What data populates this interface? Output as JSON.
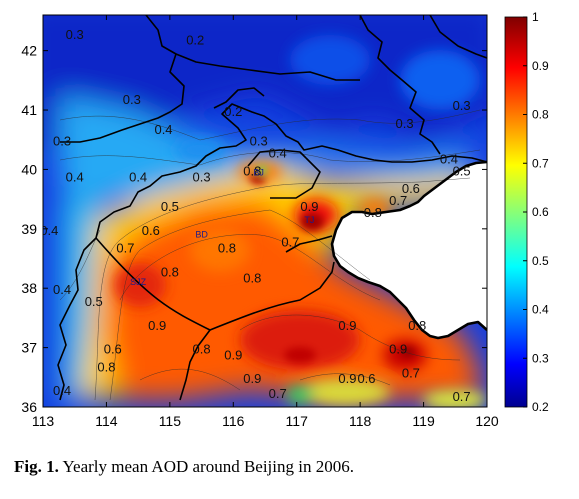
{
  "caption": {
    "number": "Fig. 1.",
    "text": "Yearly mean AOD around Beijing in 2006."
  },
  "map": {
    "x_ticks": [
      "113",
      "114",
      "115",
      "116",
      "117",
      "118",
      "119",
      "120"
    ],
    "y_ticks": [
      "36",
      "37",
      "38",
      "39",
      "40",
      "41",
      "42"
    ],
    "xlim": [
      113,
      120
    ],
    "ylim": [
      36,
      42.6
    ],
    "colorbar": {
      "ticks": [
        "0.2",
        "0.3",
        "0.4",
        "0.5",
        "0.6",
        "0.7",
        "0.8",
        "0.9",
        "1"
      ],
      "range": [
        0.2,
        1.0
      ],
      "colormap": "jet"
    },
    "cities": [
      {
        "label": "BJ",
        "lon": 116.4,
        "lat": 39.9
      },
      {
        "label": "TJ",
        "lon": 117.2,
        "lat": 39.1
      },
      {
        "label": "BD",
        "lon": 115.5,
        "lat": 38.85
      },
      {
        "label": "SJZ",
        "lon": 114.5,
        "lat": 38.05
      }
    ],
    "contour_labels": [
      {
        "text": "0.3",
        "lon": 113.5,
        "lat": 42.2
      },
      {
        "text": "0.2",
        "lon": 115.4,
        "lat": 42.1
      },
      {
        "text": "0.3",
        "lon": 114.4,
        "lat": 41.1
      },
      {
        "text": "0.2",
        "lon": 116.0,
        "lat": 40.9
      },
      {
        "text": "0.3",
        "lon": 118.7,
        "lat": 40.7
      },
      {
        "text": "0.3",
        "lon": 119.6,
        "lat": 41.0
      },
      {
        "text": "0.4",
        "lon": 114.9,
        "lat": 40.6
      },
      {
        "text": "0.3",
        "lon": 113.3,
        "lat": 40.4
      },
      {
        "text": "0.3",
        "lon": 116.4,
        "lat": 40.4
      },
      {
        "text": "0.4",
        "lon": 116.7,
        "lat": 40.2
      },
      {
        "text": "0.4",
        "lon": 113.5,
        "lat": 39.8
      },
      {
        "text": "0.3",
        "lon": 115.5,
        "lat": 39.8
      },
      {
        "text": "0.4",
        "lon": 114.5,
        "lat": 39.8
      },
      {
        "text": "0.8",
        "lon": 116.3,
        "lat": 39.9
      },
      {
        "text": "0.4",
        "lon": 119.4,
        "lat": 40.1
      },
      {
        "text": "0.6",
        "lon": 118.8,
        "lat": 39.6
      },
      {
        "text": "0.5",
        "lon": 119.6,
        "lat": 39.9
      },
      {
        "text": "0.7",
        "lon": 118.6,
        "lat": 39.4
      },
      {
        "text": "0.8",
        "lon": 118.2,
        "lat": 39.2
      },
      {
        "text": "0.9",
        "lon": 117.2,
        "lat": 39.3
      },
      {
        "text": "0.5",
        "lon": 115.0,
        "lat": 39.3
      },
      {
        "text": "0.6",
        "lon": 114.7,
        "lat": 38.9
      },
      {
        "text": "0.4",
        "lon": 113.1,
        "lat": 38.9
      },
      {
        "text": "0.7",
        "lon": 116.9,
        "lat": 38.7
      },
      {
        "text": "0.7",
        "lon": 114.3,
        "lat": 38.6
      },
      {
        "text": "0.8",
        "lon": 115.9,
        "lat": 38.6
      },
      {
        "text": "0.8",
        "lon": 115.0,
        "lat": 38.2
      },
      {
        "text": "0.8",
        "lon": 116.3,
        "lat": 38.1
      },
      {
        "text": "0.4",
        "lon": 113.3,
        "lat": 37.9
      },
      {
        "text": "0.5",
        "lon": 113.8,
        "lat": 37.7
      },
      {
        "text": "0.9",
        "lon": 114.8,
        "lat": 37.3
      },
      {
        "text": "0.6",
        "lon": 114.1,
        "lat": 36.9
      },
      {
        "text": "0.8",
        "lon": 115.5,
        "lat": 36.9
      },
      {
        "text": "0.9",
        "lon": 116.0,
        "lat": 36.8
      },
      {
        "text": "0.8",
        "lon": 114.0,
        "lat": 36.6
      },
      {
        "text": "0.9",
        "lon": 117.8,
        "lat": 37.3
      },
      {
        "text": "0.8",
        "lon": 118.9,
        "lat": 37.3
      },
      {
        "text": "0.9",
        "lon": 118.6,
        "lat": 36.9
      },
      {
        "text": "0.9",
        "lon": 116.3,
        "lat": 36.4
      },
      {
        "text": "0.9",
        "lon": 117.8,
        "lat": 36.4
      },
      {
        "text": "0.6",
        "lon": 118.1,
        "lat": 36.4
      },
      {
        "text": "0.7",
        "lon": 118.8,
        "lat": 36.5
      },
      {
        "text": "0.4",
        "lon": 113.3,
        "lat": 36.2
      },
      {
        "text": "0.7",
        "lon": 116.7,
        "lat": 36.15
      },
      {
        "text": "0.7",
        "lon": 119.6,
        "lat": 36.1
      }
    ]
  }
}
